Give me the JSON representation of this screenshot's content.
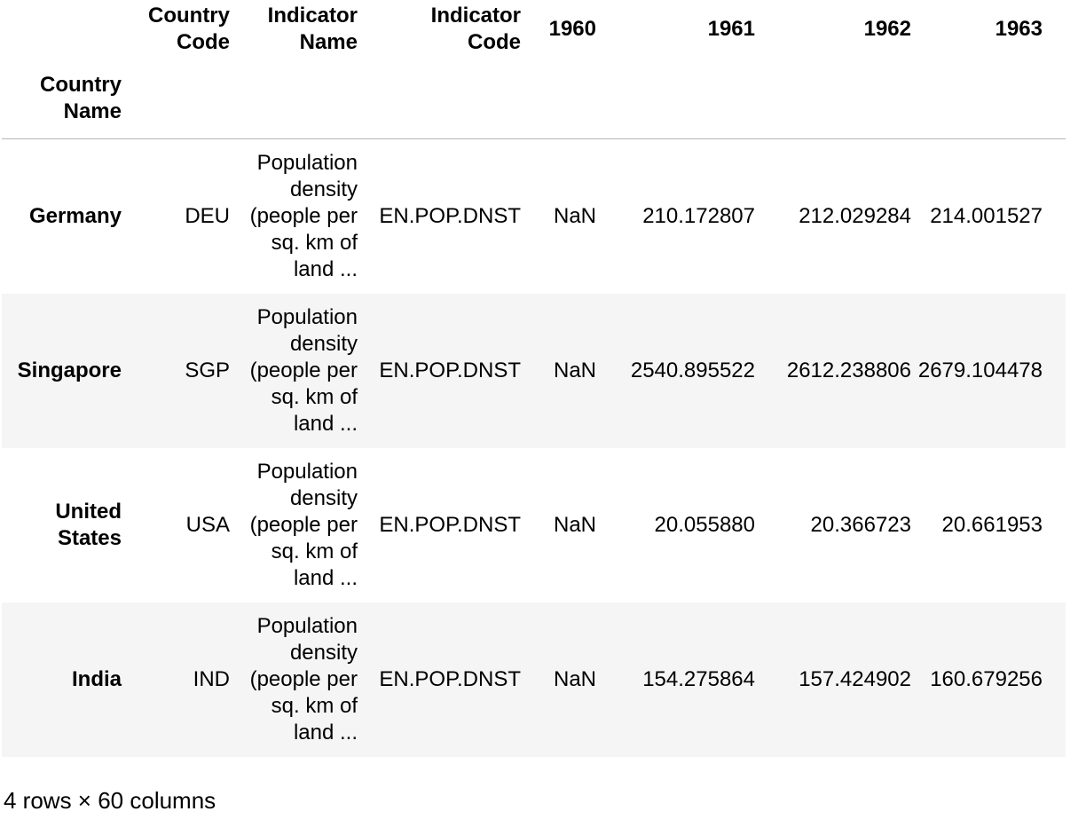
{
  "table": {
    "columns": [
      "Country Code",
      "Indicator Name",
      "Indicator Code",
      "1960",
      "1961",
      "1962",
      "1963"
    ],
    "index_name": "Country Name",
    "rows": [
      {
        "name": "Germany",
        "cells": [
          "DEU",
          "Population density (people per sq. km of land ...",
          "EN.POP.DNST",
          "NaN",
          "210.172807",
          "212.029284",
          "214.001527"
        ]
      },
      {
        "name": "Singapore",
        "cells": [
          "SGP",
          "Population density (people per sq. km of land ...",
          "EN.POP.DNST",
          "NaN",
          "2540.895522",
          "2612.238806",
          "2679.104478"
        ]
      },
      {
        "name": "United States",
        "cells": [
          "USA",
          "Population density (people per sq. km of land ...",
          "EN.POP.DNST",
          "NaN",
          "20.055880",
          "20.366723",
          "20.661953"
        ]
      },
      {
        "name": "India",
        "cells": [
          "IND",
          "Population density (people per sq. km of land ...",
          "EN.POP.DNST",
          "NaN",
          "154.275864",
          "157.424902",
          "160.679256"
        ]
      }
    ]
  },
  "footer": "4 rows × 60 columns"
}
